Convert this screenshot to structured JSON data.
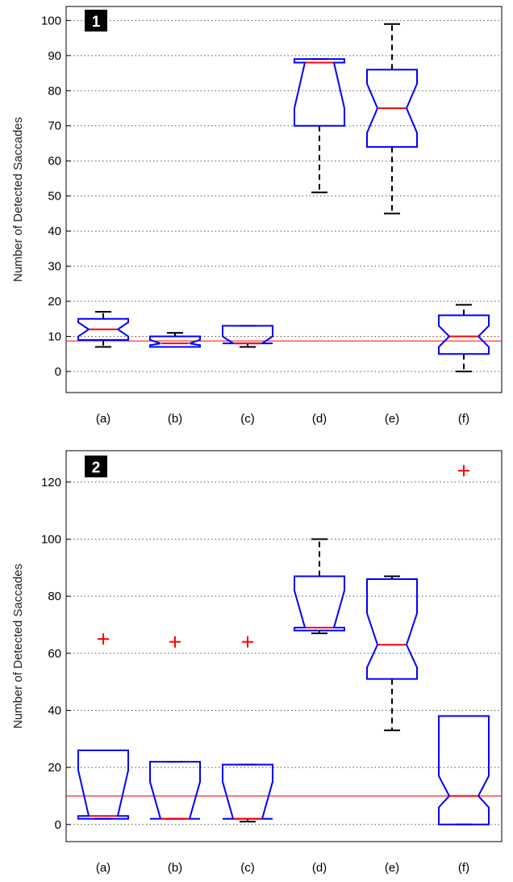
{
  "colors": {
    "box": "#0000ff",
    "median": "#ff0000",
    "whisker": "#000000",
    "outlier": "#ff0000",
    "refline": "#ff0000",
    "grid": "#555555"
  },
  "chart_data": [
    {
      "type": "boxplot",
      "panel_label": "1",
      "ylabel": "Number of Detected Saccades",
      "ylim": [
        -6,
        104
      ],
      "yticks": [
        0,
        10,
        20,
        30,
        40,
        50,
        60,
        70,
        80,
        90,
        100
      ],
      "grid": "horizontal dotted",
      "reference_line": 8.7,
      "categories": [
        "(a)",
        "(b)",
        "(c)",
        "(d)",
        "(e)",
        "(f)"
      ],
      "boxes": [
        {
          "whisker_low": 7,
          "q1": 9,
          "median": 12,
          "q3": 15,
          "whisker_high": 17,
          "notch_low": 10,
          "notch_high": 14,
          "outliers": []
        },
        {
          "whisker_low": 7,
          "q1": 7,
          "median": 8,
          "q3": 10,
          "whisker_high": 11,
          "notch_low": 7.5,
          "notch_high": 9,
          "outliers": []
        },
        {
          "whisker_low": 7,
          "q1": 8,
          "median": 8,
          "q3": 13,
          "whisker_high": 13,
          "notch_low": 8,
          "notch_high": 10,
          "outliers": []
        },
        {
          "whisker_low": 51,
          "q1": 70,
          "median": 88,
          "q3": 89,
          "whisker_high": 89,
          "notch_low": 75,
          "notch_high": 88,
          "outliers": []
        },
        {
          "whisker_low": 45,
          "q1": 64,
          "median": 75,
          "q3": 86,
          "whisker_high": 99,
          "notch_low": 68,
          "notch_high": 82,
          "outliers": []
        },
        {
          "whisker_low": 0,
          "q1": 5,
          "median": 10,
          "q3": 16,
          "whisker_high": 19,
          "notch_low": 7,
          "notch_high": 13,
          "outliers": []
        }
      ]
    },
    {
      "type": "boxplot",
      "panel_label": "2",
      "ylabel": "Number of Detected Saccades",
      "ylim": [
        -6,
        131
      ],
      "yticks": [
        0,
        20,
        40,
        60,
        80,
        100,
        120
      ],
      "grid": "horizontal dotted",
      "reference_line": 10,
      "categories": [
        "(a)",
        "(b)",
        "(c)",
        "(d)",
        "(e)",
        "(f)"
      ],
      "boxes": [
        {
          "whisker_low": 2,
          "q1": 2,
          "median": 3,
          "q3": 26,
          "whisker_high": 26,
          "notch_low": 3,
          "notch_high": 19,
          "outliers": [
            65
          ]
        },
        {
          "whisker_low": 2,
          "q1": 2,
          "median": 2,
          "q3": 22,
          "whisker_high": 22,
          "notch_low": 2,
          "notch_high": 15,
          "outliers": [
            64
          ]
        },
        {
          "whisker_low": 1,
          "q1": 2,
          "median": 2,
          "q3": 21,
          "whisker_high": 21,
          "notch_low": 2,
          "notch_high": 15,
          "outliers": [
            64
          ]
        },
        {
          "whisker_low": 67,
          "q1": 68,
          "median": 69,
          "q3": 87,
          "whisker_high": 100,
          "notch_low": 69,
          "notch_high": 82,
          "outliers": []
        },
        {
          "whisker_low": 33,
          "q1": 51,
          "median": 63,
          "q3": 86,
          "whisker_high": 87,
          "notch_low": 55,
          "notch_high": 74,
          "outliers": []
        },
        {
          "whisker_low": 0,
          "q1": 0,
          "median": 10,
          "q3": 38,
          "whisker_high": 38,
          "notch_low": 6,
          "notch_high": 17,
          "outliers": [
            124
          ]
        }
      ]
    }
  ]
}
